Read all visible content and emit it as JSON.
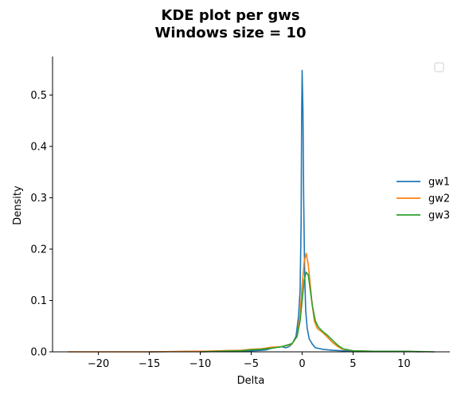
{
  "chart_data": {
    "type": "line",
    "title": [
      "KDE plot per gws",
      "Windows size = 10"
    ],
    "xlabel": "Delta",
    "ylabel": "Density",
    "xlim": [
      -24.5,
      14.5
    ],
    "ylim": [
      0,
      0.575
    ],
    "xticks": [
      -20,
      -15,
      -10,
      -5,
      0,
      5,
      10
    ],
    "xtick_labels": [
      "−20",
      "−15",
      "−10",
      "−5",
      "0",
      "5",
      "10"
    ],
    "yticks": [
      0.0,
      0.1,
      0.2,
      0.3,
      0.4,
      0.5
    ],
    "ytick_labels": [
      "0.0",
      "0.1",
      "0.2",
      "0.3",
      "0.4",
      "0.5"
    ],
    "grid": false,
    "legend_placement": "center-right",
    "series": [
      {
        "name": "gw1",
        "color": "#1f77b4",
        "points": [
          [
            -15,
            0
          ],
          [
            -10,
            0.001
          ],
          [
            -7,
            0.001
          ],
          [
            -5,
            0.002
          ],
          [
            -4,
            0.003
          ],
          [
            -3.5,
            0.004
          ],
          [
            -3,
            0.007
          ],
          [
            -2.5,
            0.009
          ],
          [
            -2,
            0.01
          ],
          [
            -1.6,
            0.008
          ],
          [
            -1.3,
            0.01
          ],
          [
            -1,
            0.015
          ],
          [
            -0.6,
            0.03
          ],
          [
            -0.35,
            0.07
          ],
          [
            -0.2,
            0.12
          ],
          [
            -0.1,
            0.25
          ],
          [
            -0.05,
            0.45
          ],
          [
            0,
            0.548
          ],
          [
            0.08,
            0.47
          ],
          [
            0.15,
            0.3
          ],
          [
            0.25,
            0.15
          ],
          [
            0.35,
            0.08
          ],
          [
            0.5,
            0.045
          ],
          [
            0.7,
            0.025
          ],
          [
            1,
            0.015
          ],
          [
            1.3,
            0.008
          ],
          [
            2,
            0.005
          ],
          [
            3,
            0.003
          ],
          [
            4,
            0.002
          ],
          [
            6,
            0.001
          ],
          [
            10,
            0.001
          ],
          [
            11.5,
            0
          ]
        ]
      },
      {
        "name": "gw2",
        "color": "#ff7f0e",
        "points": [
          [
            -23,
            0
          ],
          [
            -15,
            0
          ],
          [
            -10,
            0.001
          ],
          [
            -8,
            0.002
          ],
          [
            -6,
            0.003
          ],
          [
            -5,
            0.005
          ],
          [
            -4,
            0.006
          ],
          [
            -3,
            0.009
          ],
          [
            -2,
            0.01
          ],
          [
            -1,
            0.015
          ],
          [
            -0.5,
            0.03
          ],
          [
            -0.2,
            0.07
          ],
          [
            0,
            0.13
          ],
          [
            0.2,
            0.175
          ],
          [
            0.4,
            0.192
          ],
          [
            0.6,
            0.17
          ],
          [
            0.8,
            0.13
          ],
          [
            1,
            0.09
          ],
          [
            1.2,
            0.06
          ],
          [
            1.5,
            0.045
          ],
          [
            2,
            0.038
          ],
          [
            2.5,
            0.028
          ],
          [
            3,
            0.018
          ],
          [
            3.5,
            0.01
          ],
          [
            4,
            0.005
          ],
          [
            5,
            0.002
          ],
          [
            7,
            0.001
          ],
          [
            10,
            0.001
          ],
          [
            12,
            0
          ]
        ]
      },
      {
        "name": "gw3",
        "color": "#2ca02c",
        "points": [
          [
            -10,
            0
          ],
          [
            -8,
            0.001
          ],
          [
            -6,
            0.002
          ],
          [
            -5,
            0.004
          ],
          [
            -4,
            0.005
          ],
          [
            -3,
            0.007
          ],
          [
            -2,
            0.01
          ],
          [
            -1,
            0.016
          ],
          [
            -0.5,
            0.03
          ],
          [
            -0.2,
            0.06
          ],
          [
            0,
            0.1
          ],
          [
            0.2,
            0.14
          ],
          [
            0.4,
            0.155
          ],
          [
            0.6,
            0.15
          ],
          [
            0.8,
            0.12
          ],
          [
            1,
            0.09
          ],
          [
            1.3,
            0.06
          ],
          [
            1.6,
            0.048
          ],
          [
            2,
            0.04
          ],
          [
            2.5,
            0.032
          ],
          [
            3,
            0.022
          ],
          [
            3.5,
            0.013
          ],
          [
            4,
            0.006
          ],
          [
            5,
            0.002
          ],
          [
            7,
            0.001
          ],
          [
            10,
            0.001
          ],
          [
            13,
            0
          ]
        ]
      }
    ]
  }
}
